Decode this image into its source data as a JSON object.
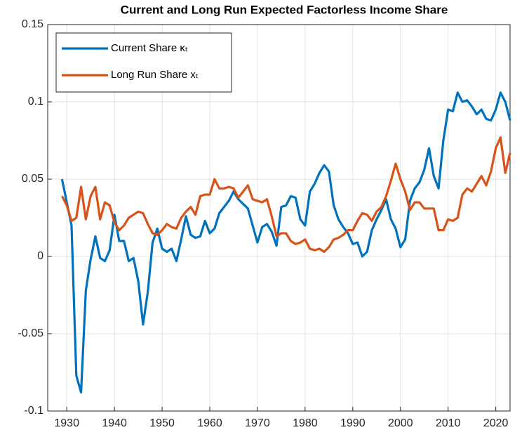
{
  "chart_data": {
    "type": "line",
    "title": "Current and Long Run Expected Factorless Income Share",
    "x": [
      1929,
      1930,
      1931,
      1932,
      1933,
      1934,
      1935,
      1936,
      1937,
      1938,
      1939,
      1940,
      1941,
      1942,
      1943,
      1944,
      1945,
      1946,
      1947,
      1948,
      1949,
      1950,
      1951,
      1952,
      1953,
      1954,
      1955,
      1956,
      1957,
      1958,
      1959,
      1960,
      1961,
      1962,
      1963,
      1964,
      1965,
      1966,
      1967,
      1968,
      1969,
      1970,
      1971,
      1972,
      1973,
      1974,
      1975,
      1976,
      1977,
      1978,
      1979,
      1980,
      1981,
      1982,
      1983,
      1984,
      1985,
      1986,
      1987,
      1988,
      1989,
      1990,
      1991,
      1992,
      1993,
      1994,
      1995,
      1996,
      1997,
      1998,
      1999,
      2000,
      2001,
      2002,
      2003,
      2004,
      2005,
      2006,
      2007,
      2008,
      2009,
      2010,
      2011,
      2012,
      2013,
      2014,
      2015,
      2016,
      2017,
      2018,
      2019,
      2020,
      2021,
      2022,
      2023
    ],
    "series": [
      {
        "name": "Current Share κₜ",
        "color": "#0072BD",
        "values": [
          0.05,
          0.035,
          0.02,
          -0.077,
          -0.088,
          -0.022,
          -0.002,
          0.013,
          -0.001,
          -0.003,
          0.004,
          0.027,
          0.01,
          0.01,
          -0.003,
          -0.001,
          -0.016,
          -0.044,
          -0.023,
          0.009,
          0.018,
          0.005,
          0.003,
          0.005,
          -0.003,
          0.011,
          0.026,
          0.014,
          0.012,
          0.013,
          0.023,
          0.015,
          0.018,
          0.028,
          0.032,
          0.036,
          0.042,
          0.037,
          0.034,
          0.031,
          0.02,
          0.009,
          0.019,
          0.021,
          0.016,
          0.007,
          0.032,
          0.033,
          0.039,
          0.038,
          0.024,
          0.02,
          0.042,
          0.047,
          0.054,
          0.059,
          0.055,
          0.033,
          0.024,
          0.019,
          0.015,
          0.008,
          0.009,
          0.0,
          0.003,
          0.017,
          0.024,
          0.03,
          0.037,
          0.024,
          0.018,
          0.006,
          0.011,
          0.036,
          0.044,
          0.048,
          0.056,
          0.07,
          0.052,
          0.044,
          0.075,
          0.095,
          0.094,
          0.106,
          0.1,
          0.101,
          0.097,
          0.092,
          0.095,
          0.089,
          0.088,
          0.095,
          0.106,
          0.1,
          0.088
        ]
      },
      {
        "name": "Long Run Share xₜ",
        "color": "#D95319",
        "values": [
          0.039,
          0.033,
          0.023,
          0.025,
          0.045,
          0.024,
          0.039,
          0.045,
          0.024,
          0.035,
          0.033,
          0.022,
          0.017,
          0.02,
          0.025,
          0.027,
          0.029,
          0.028,
          0.021,
          0.015,
          0.014,
          0.017,
          0.021,
          0.019,
          0.018,
          0.025,
          0.029,
          0.032,
          0.027,
          0.039,
          0.04,
          0.04,
          0.05,
          0.044,
          0.044,
          0.045,
          0.044,
          0.038,
          0.042,
          0.046,
          0.037,
          0.036,
          0.035,
          0.037,
          0.026,
          0.013,
          0.015,
          0.015,
          0.01,
          0.008,
          0.009,
          0.011,
          0.005,
          0.004,
          0.005,
          0.003,
          0.006,
          0.011,
          0.012,
          0.014,
          0.017,
          0.017,
          0.023,
          0.028,
          0.027,
          0.023,
          0.029,
          0.032,
          0.039,
          0.049,
          0.06,
          0.05,
          0.042,
          0.03,
          0.035,
          0.035,
          0.031,
          0.031,
          0.031,
          0.017,
          0.017,
          0.024,
          0.023,
          0.025,
          0.04,
          0.044,
          0.042,
          0.047,
          0.052,
          0.046,
          0.055,
          0.07,
          0.077,
          0.054,
          0.067
        ]
      }
    ],
    "xlim": [
      1926,
      2023
    ],
    "xticks": [
      1930,
      1940,
      1950,
      1960,
      1970,
      1980,
      1990,
      2000,
      2010,
      2020
    ],
    "ylim": [
      -0.1,
      0.15
    ],
    "yticks": [
      0.15,
      0.1,
      0.05,
      0,
      -0.05,
      -0.1
    ],
    "grid": true,
    "legend": "upper-left"
  }
}
